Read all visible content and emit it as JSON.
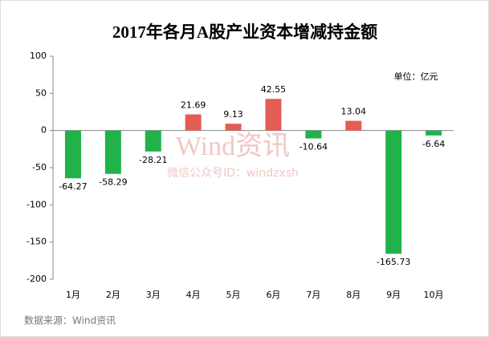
{
  "chart_data": {
    "type": "bar",
    "title": "2017年各月A股产业资本增减持金额",
    "unit_label": "单位：亿元",
    "source": "数据来源：Wind资讯",
    "watermark": [
      "Wind资讯",
      "微信公众号ID：windzxsh"
    ],
    "categories": [
      "1月",
      "2月",
      "3月",
      "4月",
      "5月",
      "6月",
      "7月",
      "8月",
      "9月",
      "10月"
    ],
    "values": [
      -64.27,
      -58.29,
      -28.21,
      21.69,
      9.13,
      42.55,
      -10.64,
      13.04,
      -165.73,
      -6.64
    ],
    "colors": [
      "#21b24b",
      "#21b24b",
      "#21b24b",
      "#e25d55",
      "#e25d55",
      "#e25d55",
      "#21b24b",
      "#e25d55",
      "#21b24b",
      "#21b24b"
    ],
    "ylim": [
      -200,
      100
    ],
    "yticks": [
      -200,
      -150,
      -100,
      -50,
      0,
      50,
      100
    ],
    "grid": false
  }
}
